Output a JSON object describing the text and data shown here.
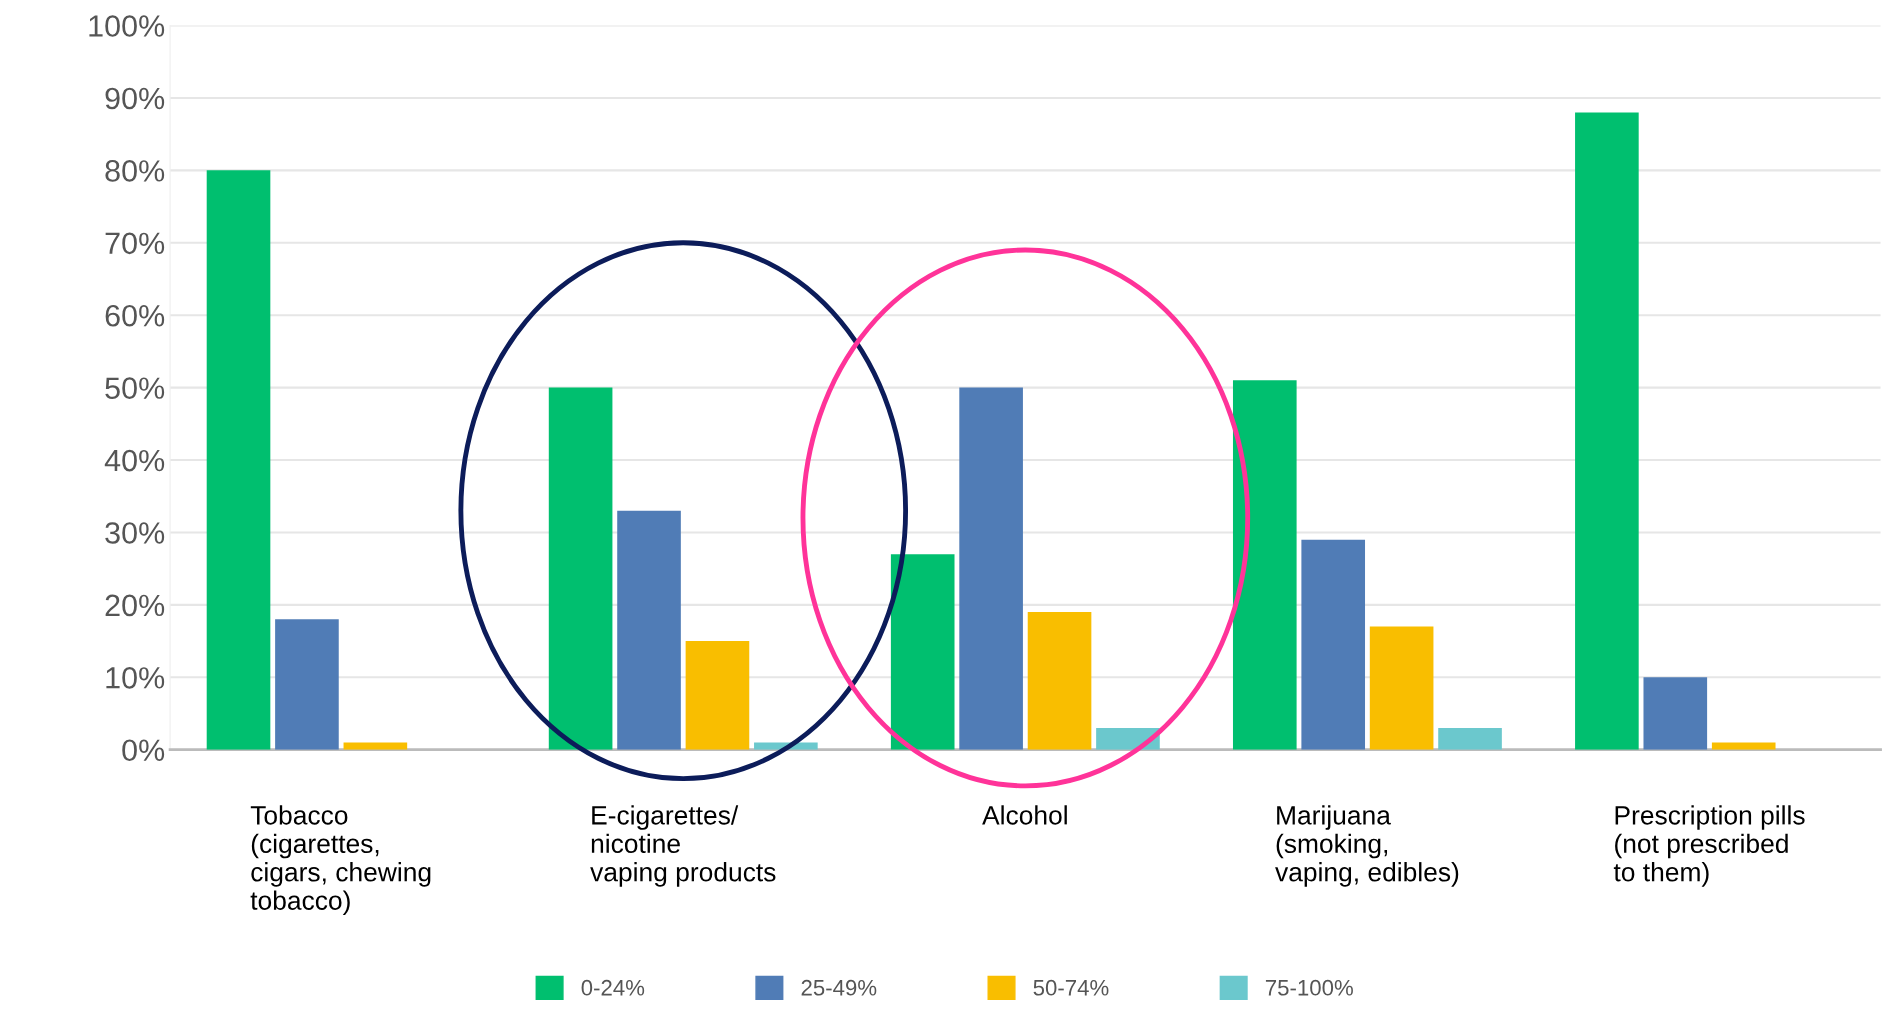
{
  "chart_data": {
    "type": "bar",
    "categories": [
      "Tobacco\n(cigarettes,\ncigars, chewing\ntobacco)",
      "E-cigarettes/\nnicotine\nvaping products",
      "Alcohol",
      "Marijuana\n(smoking,\nvaping, edibles)",
      "Prescription pills\n(not prescribed\nto them)"
    ],
    "series": [
      {
        "name": "0-24%",
        "color": "#00bf6f",
        "values": [
          80,
          50,
          27,
          51,
          88
        ]
      },
      {
        "name": "25-49%",
        "color": "#507cb6",
        "values": [
          18,
          33,
          50,
          29,
          10
        ]
      },
      {
        "name": "50-74%",
        "color": "#f9be00",
        "values": [
          1,
          15,
          19,
          17,
          1
        ]
      },
      {
        "name": "75-100%",
        "color": "#6bc8cd",
        "values": [
          0,
          1,
          3,
          3,
          0
        ]
      }
    ],
    "ylim": [
      0,
      100
    ],
    "yticks": [
      {
        "value": 0,
        "label": "0%"
      },
      {
        "value": 10,
        "label": "10%"
      },
      {
        "value": 20,
        "label": "20%"
      },
      {
        "value": 30,
        "label": "30%"
      },
      {
        "value": 40,
        "label": "40%"
      },
      {
        "value": 50,
        "label": "50%"
      },
      {
        "value": 60,
        "label": "60%"
      },
      {
        "value": 70,
        "label": "70%"
      },
      {
        "value": 80,
        "label": "80%"
      },
      {
        "value": 90,
        "label": "90%"
      },
      {
        "value": 100,
        "label": "100%"
      }
    ],
    "grid": "y",
    "legend": "bottom"
  }
}
